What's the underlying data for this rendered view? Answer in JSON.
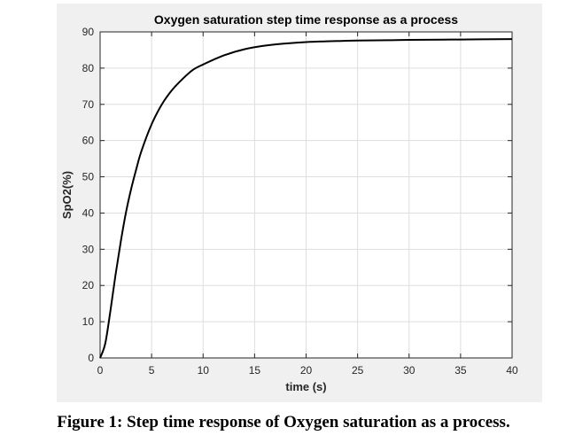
{
  "caption": "Figure 1: Step time response of Oxygen saturation as a process.",
  "chart_data": {
    "type": "line",
    "title": "Oxygen saturation step time response as a process",
    "xlabel": "time (s)",
    "ylabel": "SpO2(%)",
    "xlim": [
      0,
      40
    ],
    "ylim": [
      0,
      90
    ],
    "xticks": [
      0,
      5,
      10,
      15,
      20,
      25,
      30,
      35,
      40
    ],
    "yticks": [
      0,
      10,
      20,
      30,
      40,
      50,
      60,
      70,
      80,
      90
    ],
    "grid": true,
    "line_color": "#000000",
    "series": [
      {
        "x": [
          0,
          0.5,
          1,
          1.5,
          2,
          2.5,
          3,
          3.5,
          4,
          5,
          6,
          7,
          8,
          9,
          10,
          12,
          14,
          16,
          18,
          20,
          22,
          25,
          28,
          30,
          35,
          40
        ],
        "y": [
          0,
          4,
          13,
          23,
          32,
          40,
          46.5,
          52,
          57,
          64.5,
          70,
          74,
          77,
          79.5,
          81,
          83.5,
          85.2,
          86.2,
          86.8,
          87.2,
          87.4,
          87.6,
          87.7,
          87.8,
          87.9,
          88
        ]
      }
    ]
  }
}
